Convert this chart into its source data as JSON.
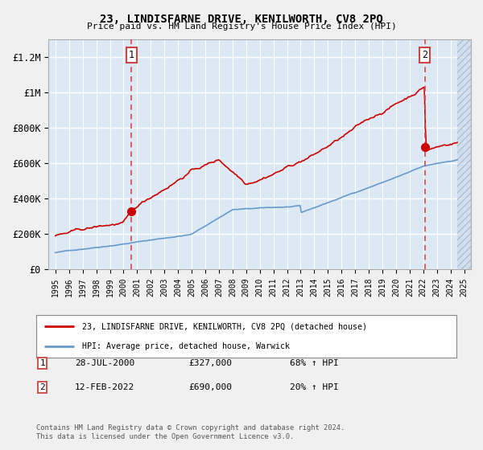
{
  "title": "23, LINDISFARNE DRIVE, KENILWORTH, CV8 2PQ",
  "subtitle": "Price paid vs. HM Land Registry's House Price Index (HPI)",
  "legend_line1": "23, LINDISFARNE DRIVE, KENILWORTH, CV8 2PQ (detached house)",
  "legend_line2": "HPI: Average price, detached house, Warwick",
  "red_line_color": "#cc0000",
  "blue_line_color": "#6699cc",
  "background_color": "#dce9f5",
  "grid_color": "#ffffff",
  "dashed_line_color": "#dd4444",
  "dot_color": "#cc0000",
  "footer": "Contains HM Land Registry data © Crown copyright and database right 2024.\nThis data is licensed under the Open Government Licence v3.0.",
  "ylim": [
    0,
    1300000
  ],
  "yticks": [
    0,
    200000,
    400000,
    600000,
    800000,
    1000000,
    1200000
  ],
  "ytick_labels": [
    "£0",
    "£200K",
    "£400K",
    "£600K",
    "£800K",
    "£1M",
    "£1.2M"
  ],
  "sale1_x": 2000.583,
  "sale1_y": 327000,
  "sale2_x": 2022.125,
  "sale2_y": 690000,
  "plot_end": 2024.5,
  "xmin": 1994.5,
  "xmax": 2025.5
}
